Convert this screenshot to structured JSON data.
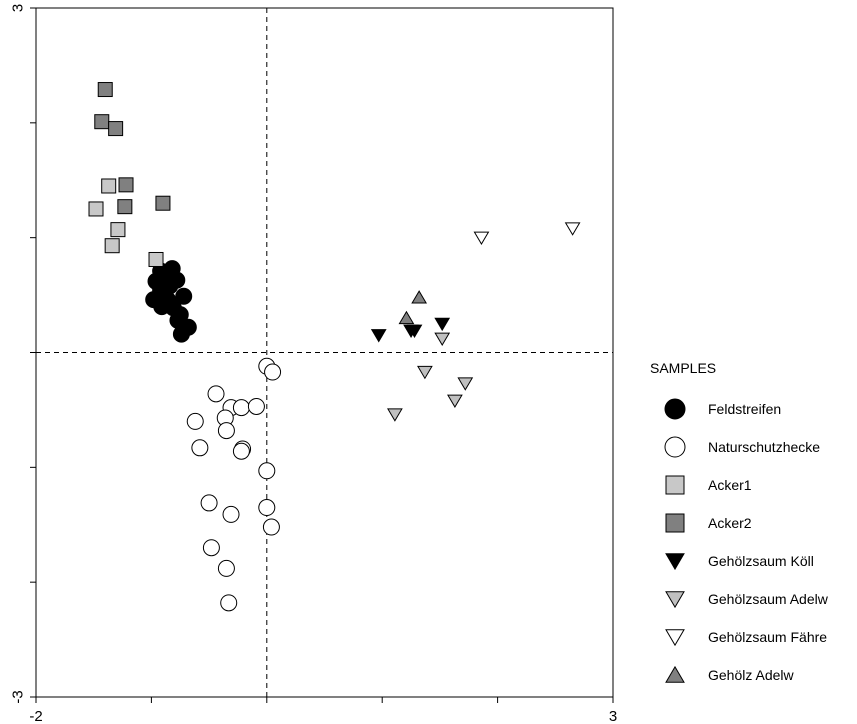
{
  "chart_data": {
    "type": "scatter",
    "title": "",
    "xlabel": "",
    "ylabel": "",
    "xlim": [
      -2,
      3
    ],
    "ylim": [
      -3,
      3
    ],
    "x_tick_labels": [
      "-2",
      "3"
    ],
    "y_tick_labels": [
      "3",
      "-3"
    ],
    "reference_lines": {
      "x": 0,
      "y": 0,
      "style": "dashed"
    },
    "grid": false,
    "legend": {
      "title": "SAMPLES",
      "placement": "right"
    },
    "series": [
      {
        "name": "Feldstreifen",
        "marker": "circle",
        "fill": "#000000",
        "points": [
          [
            -0.92,
            0.71
          ],
          [
            -0.82,
            0.73
          ],
          [
            -0.96,
            0.62
          ],
          [
            -0.87,
            0.64
          ],
          [
            -0.78,
            0.63
          ],
          [
            -0.92,
            0.54
          ],
          [
            -0.84,
            0.58
          ],
          [
            -0.72,
            0.49
          ],
          [
            -0.98,
            0.46
          ],
          [
            -0.86,
            0.46
          ],
          [
            -0.91,
            0.4
          ],
          [
            -0.81,
            0.39
          ],
          [
            -0.75,
            0.33
          ],
          [
            -0.68,
            0.22
          ],
          [
            -0.77,
            0.28
          ],
          [
            -0.74,
            0.16
          ]
        ]
      },
      {
        "name": "Naturschutzhecke",
        "marker": "circle",
        "fill": "#ffffff",
        "points": [
          [
            0.0,
            -0.12
          ],
          [
            0.05,
            -0.17
          ],
          [
            -0.44,
            -0.36
          ],
          [
            -0.31,
            -0.48
          ],
          [
            -0.22,
            -0.48
          ],
          [
            -0.09,
            -0.47
          ],
          [
            -0.62,
            -0.6
          ],
          [
            -0.36,
            -0.57
          ],
          [
            -0.35,
            -0.68
          ],
          [
            -0.58,
            -0.83
          ],
          [
            -0.21,
            -0.84
          ],
          [
            -0.22,
            -0.86
          ],
          [
            0.0,
            -1.03
          ],
          [
            -0.5,
            -1.31
          ],
          [
            -0.31,
            -1.41
          ],
          [
            0.0,
            -1.35
          ],
          [
            0.04,
            -1.52
          ],
          [
            -0.48,
            -1.7
          ],
          [
            -0.35,
            -1.88
          ],
          [
            -0.33,
            -2.18
          ]
        ]
      },
      {
        "name": "Acker1",
        "marker": "square",
        "fill": "#c8c8c8",
        "points": [
          [
            -1.37,
            1.45
          ],
          [
            -1.48,
            1.25
          ],
          [
            -1.29,
            1.07
          ],
          [
            -1.34,
            0.93
          ],
          [
            -0.96,
            0.81
          ]
        ]
      },
      {
        "name": "Acker2",
        "marker": "square",
        "fill": "#808080",
        "points": [
          [
            -1.4,
            2.29
          ],
          [
            -1.43,
            2.01
          ],
          [
            -1.31,
            1.95
          ],
          [
            -1.22,
            1.46
          ],
          [
            -1.23,
            1.27
          ],
          [
            -0.9,
            1.3
          ]
        ]
      },
      {
        "name": "Gehölzsaum Köll",
        "marker": "triangle-down",
        "fill": "#000000",
        "points": [
          [
            0.97,
            0.15
          ],
          [
            1.25,
            0.19
          ],
          [
            1.28,
            0.19
          ],
          [
            1.52,
            0.25
          ]
        ]
      },
      {
        "name": "Gehölzsaum Adelw",
        "marker": "triangle-down",
        "fill": "#c0c0c0",
        "points": [
          [
            1.52,
            0.12
          ],
          [
            1.37,
            -0.17
          ],
          [
            1.72,
            -0.27
          ],
          [
            1.63,
            -0.42
          ],
          [
            1.11,
            -0.54
          ]
        ]
      },
      {
        "name": "Gehölzsaum Fähre",
        "marker": "triangle-down",
        "fill": "#ffffff",
        "points": [
          [
            1.86,
            1.0
          ],
          [
            2.65,
            1.08
          ]
        ]
      },
      {
        "name": "Gehölz Adelw",
        "marker": "triangle-up",
        "fill": "#808080",
        "points": [
          [
            1.32,
            0.48
          ],
          [
            1.21,
            0.3
          ]
        ]
      }
    ]
  }
}
